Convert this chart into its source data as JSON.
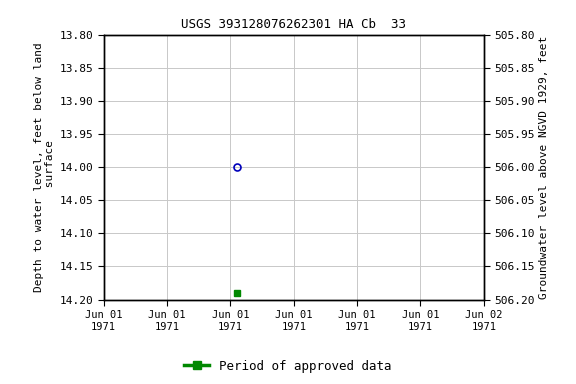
{
  "title": "USGS 393128076262301 HA Cb  33",
  "left_ylabel_line1": "Depth to water level, feet below land",
  "left_ylabel_line2": " surface",
  "right_ylabel": "Groundwater level above NGVD 1929, feet",
  "ylim_left": [
    13.8,
    14.2
  ],
  "ylim_right": [
    505.8,
    506.2
  ],
  "left_yticks": [
    13.8,
    13.85,
    13.9,
    13.95,
    14.0,
    14.05,
    14.1,
    14.15,
    14.2
  ],
  "right_yticks": [
    506.2,
    506.15,
    506.1,
    506.05,
    506.0,
    505.95,
    505.9,
    505.85,
    505.8
  ],
  "data_blue": {
    "x_hours": 8.4,
    "depth": 14.0
  },
  "data_green": {
    "x_hours": 8.4,
    "depth": 14.19
  },
  "x_tick_positions": [
    0,
    4,
    8,
    12,
    16,
    20,
    24
  ],
  "x_tick_labels": [
    "Jun 01\n1971",
    "Jun 01\n1971",
    "Jun 01\n1971",
    "Jun 01\n1971",
    "Jun 01\n1971",
    "Jun 01\n1971",
    "Jun 02\n1971"
  ],
  "legend_label": "Period of approved data",
  "bg_color": "#ffffff",
  "grid_color": "#c8c8c8",
  "blue_marker_color": "#0000bb",
  "green_marker_color": "#008800",
  "title_fontsize": 9,
  "tick_fontsize": 8,
  "label_fontsize": 8,
  "legend_fontsize": 9
}
